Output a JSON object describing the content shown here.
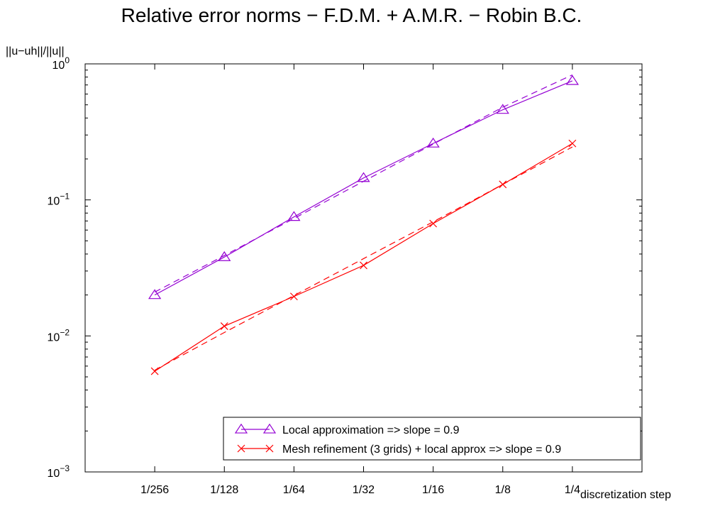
{
  "chart_data": {
    "type": "line",
    "title": "Relative error norms − F.D.M. + A.M.R. − Robin B.C.",
    "xlabel": "discretization step",
    "ylabel": "||u−uh||/||u||",
    "x_scale": "log2",
    "y_scale": "log10",
    "x": [
      0.00390625,
      0.0078125,
      0.015625,
      0.03125,
      0.0625,
      0.125,
      0.25
    ],
    "x_tick_labels": [
      "1/256",
      "1/128",
      "1/64",
      "1/32",
      "1/16",
      "1/8",
      "1/4"
    ],
    "ylim": [
      0.001,
      1
    ],
    "y_ticks": [
      {
        "base": "10",
        "exp": "0"
      },
      {
        "base": "10",
        "exp": "−1"
      },
      {
        "base": "10",
        "exp": "−2"
      },
      {
        "base": "10",
        "exp": "−3"
      }
    ],
    "legend_position": "bottom-right",
    "series": [
      {
        "name": "Local approximation => slope = 0.9",
        "color": "#9400d3",
        "marker": "triangle",
        "values": [
          0.02,
          0.038,
          0.075,
          0.145,
          0.26,
          0.46,
          0.75
        ],
        "fit": [
          0.021,
          0.039,
          0.073,
          0.137,
          0.257,
          0.48,
          0.83
        ]
      },
      {
        "name": "Mesh refinement (3 grids) + local approx => slope = 0.9",
        "color": "#ff0000",
        "marker": "x",
        "values": [
          0.0055,
          0.0118,
          0.0195,
          0.033,
          0.067,
          0.13,
          0.26
        ],
        "fit": [
          0.0056,
          0.0106,
          0.0198,
          0.037,
          0.069,
          0.13,
          0.245
        ]
      }
    ],
    "grid": false
  }
}
